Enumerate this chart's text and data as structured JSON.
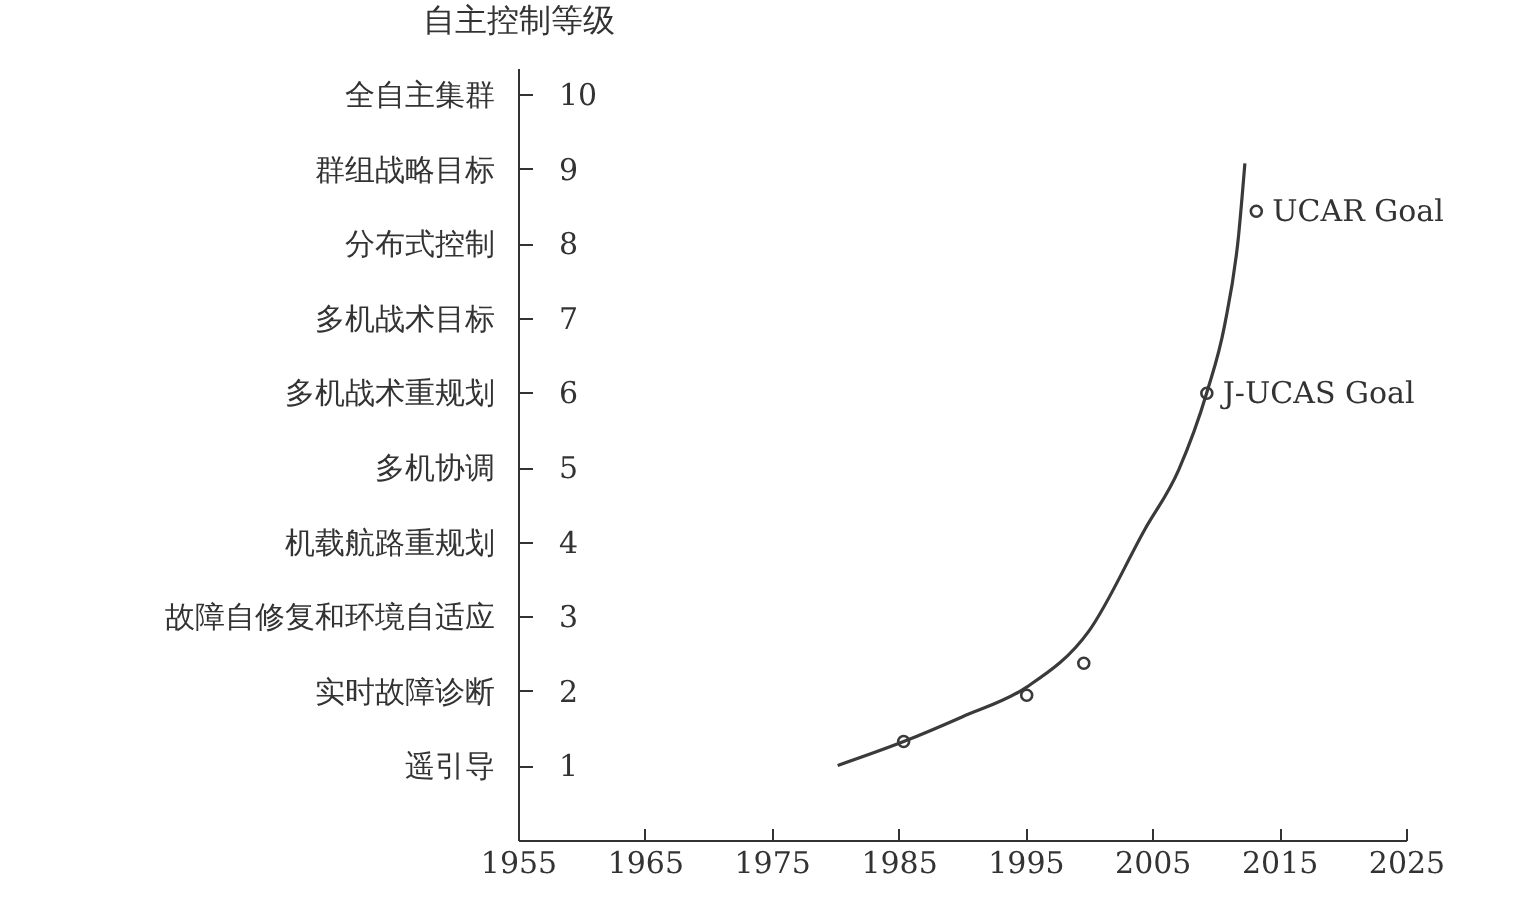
{
  "chart_data": {
    "type": "line",
    "ylabel": "自主控制等级",
    "xlim": [
      1955,
      2025
    ],
    "xticks": [
      1955,
      1965,
      1975,
      1985,
      1995,
      2005,
      2015,
      2025
    ],
    "ylim": [
      0,
      10.35
    ],
    "yticks": [
      1,
      2,
      3,
      4,
      5,
      6,
      7,
      8,
      9,
      10
    ],
    "y2_categories": [
      "全自主集群",
      "群组战略目标",
      "分布式控制",
      "多机战术目标",
      "多机战术重规划",
      "多机协调",
      "机载航路重规划",
      "故障自修复和环境自适应",
      "实时故障诊断",
      "遥引导"
    ],
    "series": [
      {
        "color": "#3a3a3a",
        "marker": "none",
        "line_style": "solid",
        "x": [
          1980.2,
          1985.4,
          1990,
          1995.1,
          2000,
          2004.4,
          2007.1,
          2009.3,
          2010.7,
          2011.8,
          2012.3
        ],
        "values": [
          1.0,
          1.32,
          1.65,
          2.05,
          2.8,
          4.16,
          4.97,
          6.0,
          6.9,
          8.1,
          9.07
        ]
      },
      {
        "type": "scatter",
        "color": "#3a3a3a",
        "marker": "circle",
        "x": [
          1985.4,
          1995.1,
          1999.6,
          2009.3,
          2013.2
        ],
        "values": [
          1.32,
          1.94,
          2.37,
          5.99,
          8.43
        ]
      }
    ],
    "annotations": [
      {
        "text": "J-UCAS Goal",
        "x": 2009.3,
        "y": 5.99
      },
      {
        "text": "UCAR Goal",
        "x": 2013.2,
        "y": 8.43
      }
    ],
    "grid": false
  }
}
